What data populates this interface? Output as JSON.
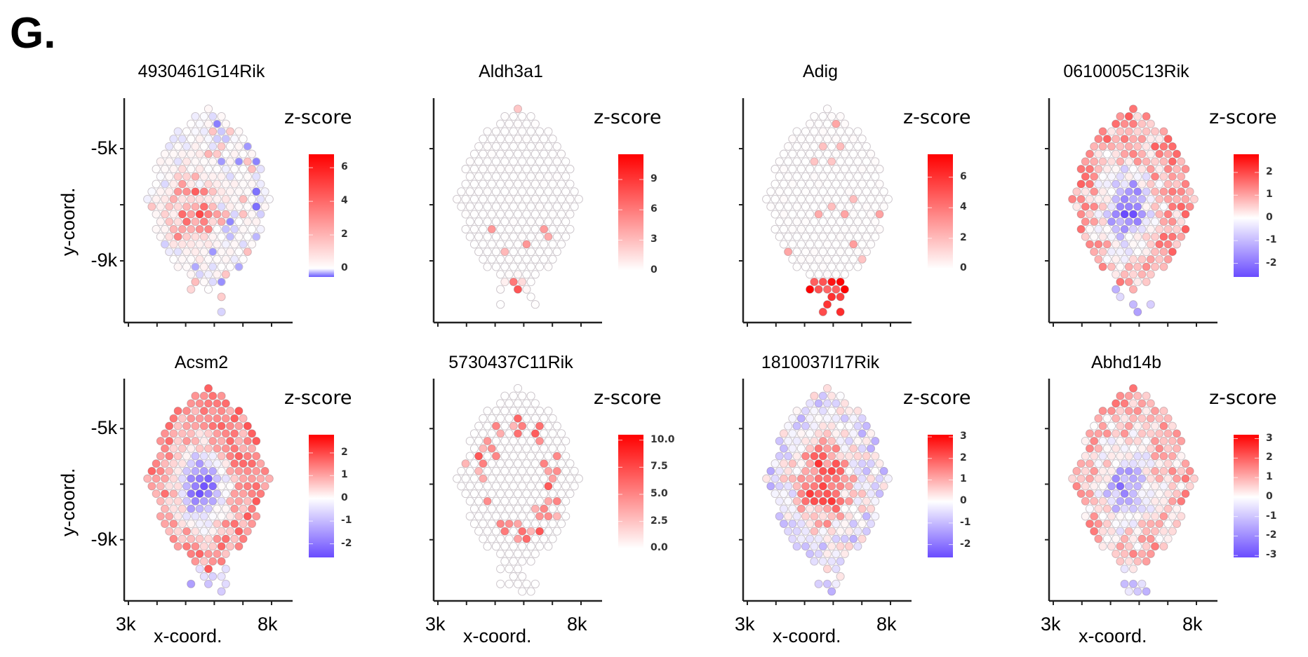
{
  "figure_label": "G.",
  "chart_data": [
    {
      "type": "scatter",
      "subtype": "spatial hex-spot expression map",
      "title": "4930461G14Rik",
      "xlabel": "x-coord.",
      "ylabel": "y-coord.",
      "xticks": [
        "3k",
        "8k"
      ],
      "yticks": [
        "-5k",
        "-9k"
      ],
      "show_x_tick_labels": false,
      "show_y_tick_labels": true,
      "show_xlabel": false,
      "show_ylabel": true,
      "xlim": [
        3000,
        8000
      ],
      "ylim": [
        -11000,
        -3000
      ],
      "legend": {
        "title": "z-score",
        "ticks": [
          0,
          2,
          4,
          6
        ],
        "range": [
          -0.5,
          6.8
        ],
        "colors": [
          "#6a5cff",
          "#ffffff",
          "#ff0000"
        ],
        "mid": 0
      },
      "pattern": {
        "kind": "center-hot",
        "base": 0.1,
        "peak": 4.5,
        "noise": 0.8
      }
    },
    {
      "type": "scatter",
      "subtype": "spatial hex-spot expression map",
      "title": "Aldh3a1",
      "xlabel": "x-coord.",
      "ylabel": "y-coord.",
      "xticks": [
        "3k",
        "8k"
      ],
      "yticks": [
        "-5k",
        "-9k"
      ],
      "show_x_tick_labels": false,
      "show_y_tick_labels": false,
      "show_xlabel": false,
      "show_ylabel": false,
      "xlim": [
        3000,
        8000
      ],
      "ylim": [
        -11000,
        -3000
      ],
      "legend": {
        "title": "z-score",
        "ticks": [
          0,
          3,
          6,
          9
        ],
        "range": [
          -0.3,
          11.5
        ],
        "colors": [
          "#ffffff",
          "#ffffff",
          "#ff0000"
        ],
        "mid": 0
      },
      "pattern": {
        "kind": "bottom-spot",
        "base": 0.0,
        "peak": 11,
        "noise": 0.3
      }
    },
    {
      "type": "scatter",
      "subtype": "spatial hex-spot expression map",
      "title": "Adig",
      "xlabel": "x-coord.",
      "ylabel": "y-coord.",
      "xticks": [
        "3k",
        "8k"
      ],
      "yticks": [
        "-5k",
        "-9k"
      ],
      "show_x_tick_labels": false,
      "show_y_tick_labels": false,
      "show_xlabel": false,
      "show_ylabel": false,
      "xlim": [
        3000,
        8000
      ],
      "ylim": [
        -11000,
        -3000
      ],
      "legend": {
        "title": "z-score",
        "ticks": [
          0,
          2,
          4,
          6
        ],
        "range": [
          -0.3,
          7.5
        ],
        "colors": [
          "#ffffff",
          "#ffffff",
          "#ff0000"
        ],
        "mid": 0
      },
      "pattern": {
        "kind": "edge-top-bottom",
        "base": 0.1,
        "peak": 7,
        "noise": 0.4
      }
    },
    {
      "type": "scatter",
      "subtype": "spatial hex-spot expression map",
      "title": "0610005C13Rik",
      "xlabel": "x-coord.",
      "ylabel": "y-coord.",
      "xticks": [
        "3k",
        "8k"
      ],
      "yticks": [
        "-5k",
        "-9k"
      ],
      "show_x_tick_labels": false,
      "show_y_tick_labels": false,
      "show_xlabel": false,
      "show_ylabel": false,
      "xlim": [
        3000,
        8000
      ],
      "ylim": [
        -11000,
        -3000
      ],
      "legend": {
        "title": "z-score",
        "ticks": [
          2,
          1,
          0,
          -1,
          -2
        ],
        "range": [
          -2.6,
          2.8
        ],
        "colors": [
          "#6a4cff",
          "#ffffff",
          "#ff0000"
        ],
        "mid": 0
      },
      "pattern": {
        "kind": "center-cold",
        "base": 1.0,
        "peak": -2.2,
        "noise": 0.8
      }
    },
    {
      "type": "scatter",
      "subtype": "spatial hex-spot expression map",
      "title": "Acsm2",
      "xlabel": "x-coord.",
      "ylabel": "y-coord.",
      "xticks": [
        "3k",
        "8k"
      ],
      "yticks": [
        "-5k",
        "-9k"
      ],
      "show_x_tick_labels": true,
      "show_y_tick_labels": true,
      "show_xlabel": true,
      "show_ylabel": true,
      "xlim": [
        3000,
        8000
      ],
      "ylim": [
        -11000,
        -3000
      ],
      "legend": {
        "title": "z-score",
        "ticks": [
          2,
          1,
          0,
          -1,
          -2
        ],
        "range": [
          -2.6,
          2.8
        ],
        "colors": [
          "#6a4cff",
          "#ffffff",
          "#ff0000"
        ],
        "mid": 0
      },
      "pattern": {
        "kind": "center-cold",
        "base": 1.3,
        "peak": -2.4,
        "noise": 0.6
      }
    },
    {
      "type": "scatter",
      "subtype": "spatial hex-spot expression map",
      "title": "5730437C11Rik",
      "xlabel": "x-coord.",
      "ylabel": "y-coord.",
      "xticks": [
        "3k",
        "8k"
      ],
      "yticks": [
        "-5k",
        "-9k"
      ],
      "show_x_tick_labels": true,
      "show_y_tick_labels": false,
      "show_xlabel": true,
      "show_ylabel": false,
      "xlim": [
        3000,
        8000
      ],
      "ylim": [
        -11000,
        -3000
      ],
      "legend": {
        "title": "z-score",
        "ticks": [
          10.0,
          7.5,
          5.0,
          2.5,
          0.0
        ],
        "tick_labels": [
          "10.0",
          "7.5",
          "5.0",
          "2.5",
          "0.0"
        ],
        "range": [
          -0.5,
          10.5
        ],
        "colors": [
          "#ffffff",
          "#ffffff",
          "#ff0000"
        ],
        "mid": 0
      },
      "pattern": {
        "kind": "ring-sparse",
        "base": 0.0,
        "peak": 7,
        "noise": 0.3
      }
    },
    {
      "type": "scatter",
      "subtype": "spatial hex-spot expression map",
      "title": "1810037I17Rik",
      "xlabel": "x-coord.",
      "ylabel": "y-coord.",
      "xticks": [
        "3k",
        "8k"
      ],
      "yticks": [
        "-5k",
        "-9k"
      ],
      "show_x_tick_labels": true,
      "show_y_tick_labels": false,
      "show_xlabel": true,
      "show_ylabel": false,
      "xlim": [
        3000,
        8000
      ],
      "ylim": [
        -11000,
        -3000
      ],
      "legend": {
        "title": "z-score",
        "ticks": [
          3,
          2,
          1,
          0,
          -1,
          -2
        ],
        "range": [
          -2.6,
          3.1
        ],
        "colors": [
          "#6a4cff",
          "#ffffff",
          "#ff0000"
        ],
        "mid": 0
      },
      "pattern": {
        "kind": "center-hot-diverging",
        "base": -0.4,
        "peak": 2.4,
        "noise": 0.9
      }
    },
    {
      "type": "scatter",
      "subtype": "spatial hex-spot expression map",
      "title": "Abhd14b",
      "xlabel": "x-coord.",
      "ylabel": "y-coord.",
      "xticks": [
        "3k",
        "8k"
      ],
      "yticks": [
        "-5k",
        "-9k"
      ],
      "show_x_tick_labels": true,
      "show_y_tick_labels": false,
      "show_xlabel": true,
      "show_ylabel": false,
      "xlim": [
        3000,
        8000
      ],
      "ylim": [
        -11000,
        -3000
      ],
      "legend": {
        "title": "z-score",
        "ticks": [
          3,
          2,
          1,
          0,
          -1,
          -2,
          -3
        ],
        "range": [
          -3.1,
          3.2
        ],
        "colors": [
          "#6a4cff",
          "#ffffff",
          "#ff0000"
        ],
        "mid": 0
      },
      "pattern": {
        "kind": "center-cold",
        "base": 0.9,
        "peak": -2.0,
        "noise": 0.9
      }
    }
  ]
}
